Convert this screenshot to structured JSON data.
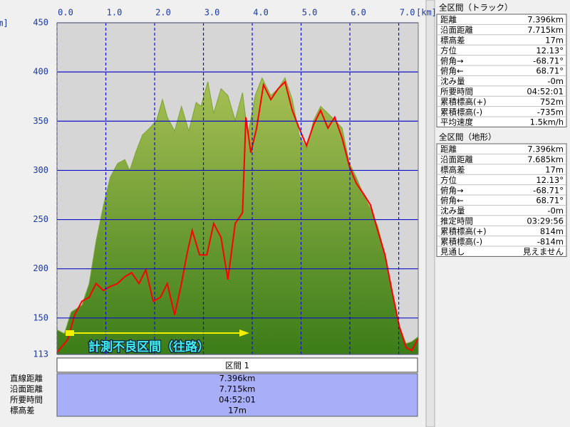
{
  "chart_data": {
    "type": "line",
    "x_unit_label": "[km]",
    "y_unit_label": "[m]",
    "xlim": [
      0,
      7.4
    ],
    "ylim": [
      113,
      450
    ],
    "xticks": [
      {
        "value": 0,
        "label": "0.0"
      },
      {
        "value": 1,
        "label": "1.0"
      },
      {
        "value": 2,
        "label": "2.0"
      },
      {
        "value": 3,
        "label": "3.0"
      },
      {
        "value": 4,
        "label": "4.0"
      },
      {
        "value": 5,
        "label": "5.0"
      },
      {
        "value": 6,
        "label": "6.0"
      },
      {
        "value": 7,
        "label": "7.0"
      }
    ],
    "yticks": [
      113,
      150,
      200,
      250,
      300,
      350,
      400,
      450
    ],
    "grid": true,
    "annotation": "計測不良区間（往路）",
    "series": [
      {
        "area": true,
        "color": "#7aa52e",
        "x": [
          0,
          0.15,
          0.29,
          0.51,
          0.66,
          0.8,
          0.95,
          1.09,
          1.24,
          1.39,
          1.49,
          1.61,
          1.75,
          1.9,
          2.04,
          2.16,
          2.26,
          2.41,
          2.55,
          2.7,
          2.85,
          2.95,
          3.09,
          3.21,
          3.36,
          3.5,
          3.65,
          3.8,
          3.91,
          4.06,
          4.2,
          4.38,
          4.53,
          4.67,
          4.82,
          4.96,
          5.11,
          5.26,
          5.4,
          5.55,
          5.69,
          5.84,
          5.99,
          6.13,
          6.28,
          6.42,
          6.57,
          6.72,
          6.86,
          7.01,
          7.15,
          7.27,
          7.4
        ],
        "values": [
          138,
          134,
          156,
          163,
          185,
          228,
          264,
          293,
          307,
          311,
          300,
          318,
          336,
          343,
          351,
          372,
          354,
          340,
          365,
          340,
          369,
          365,
          390,
          358,
          383,
          376,
          351,
          379,
          336,
          376,
          394,
          376,
          383,
          394,
          372,
          336,
          322,
          351,
          365,
          358,
          351,
          343,
          307,
          293,
          275,
          261,
          243,
          214,
          178,
          142,
          124,
          126,
          131
        ]
      },
      {
        "area": false,
        "color": "#ff0000",
        "x": [
          0,
          0.22,
          0.36,
          0.51,
          0.66,
          0.8,
          0.95,
          1.09,
          1.24,
          1.39,
          1.53,
          1.68,
          1.82,
          1.97,
          2.12,
          2.26,
          2.41,
          2.55,
          2.66,
          2.77,
          2.92,
          3.07,
          3.21,
          3.36,
          3.5,
          3.65,
          3.8,
          3.87,
          3.97,
          4.09,
          4.23,
          4.38,
          4.53,
          4.67,
          4.82,
          4.96,
          5.11,
          5.26,
          5.4,
          5.55,
          5.69,
          5.84,
          5.99,
          6.13,
          6.28,
          6.42,
          6.57,
          6.72,
          6.86,
          7.01,
          7.15,
          7.27,
          7.4
        ],
        "values": [
          115,
          128,
          153,
          167,
          171,
          185,
          178,
          182,
          185,
          192,
          196,
          185,
          199,
          167,
          171,
          185,
          153,
          185,
          214,
          239,
          214,
          214,
          246,
          232,
          189,
          246,
          257,
          354,
          318,
          343,
          387,
          372,
          383,
          390,
          361,
          343,
          325,
          347,
          361,
          343,
          354,
          333,
          304,
          287,
          276,
          265,
          239,
          214,
          178,
          142,
          120,
          117,
          129
        ]
      }
    ]
  },
  "segment_table": {
    "header": "区間 1",
    "rows": [
      [
        "直線距離",
        "7.396km"
      ],
      [
        "沿面距離",
        "7.715km"
      ],
      [
        "所要時間",
        "04:52:01"
      ],
      [
        "標高差",
        "17m"
      ]
    ]
  },
  "panels": [
    {
      "title": "全区間（トラック）",
      "rows": [
        [
          "距離",
          "7.396km"
        ],
        [
          "沿面距離",
          "7.715km"
        ],
        [
          "標高差",
          "17m"
        ],
        [
          "方位",
          "12.13°"
        ],
        [
          "俯角→",
          "-68.71°"
        ],
        [
          "俯角←",
          "68.71°"
        ],
        [
          "沈み量",
          "-0m"
        ],
        [
          "所要時間",
          "04:52:01"
        ],
        [
          "累積標高(+)",
          "752m"
        ],
        [
          "累積標高(-)",
          "-735m"
        ],
        [
          "平均速度",
          "1.5km/h"
        ]
      ]
    },
    {
      "title": "全区間（地形）",
      "rows": [
        [
          "距離",
          "7.396km"
        ],
        [
          "沿面距離",
          "7.685km"
        ],
        [
          "標高差",
          "17m"
        ],
        [
          "方位",
          "12.13°"
        ],
        [
          "俯角→",
          "-68.71°"
        ],
        [
          "俯角←",
          "68.71°"
        ],
        [
          "沈み量",
          "-0m"
        ],
        [
          "推定時間",
          "03:29:56"
        ],
        [
          "累積標高(+)",
          "814m"
        ],
        [
          "累積標高(-)",
          "-814m"
        ],
        [
          "見通し",
          "見えません"
        ]
      ]
    }
  ]
}
